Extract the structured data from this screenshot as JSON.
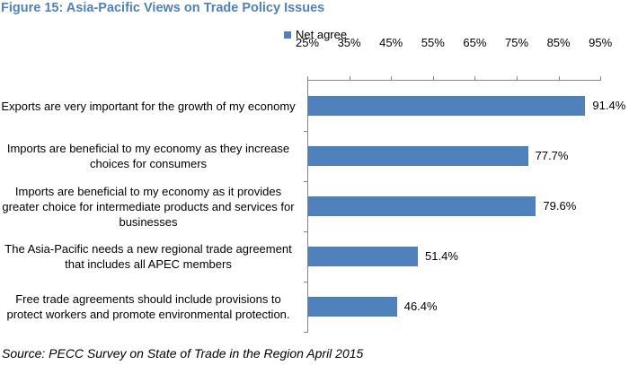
{
  "figure": {
    "title": "Figure 15: Asia-Pacific Views on Trade Policy Issues",
    "source": "Source: PECC Survey on State of Trade in the Region April 2015"
  },
  "legend": {
    "label": "Net agree",
    "color": "#4f81bd"
  },
  "axis": {
    "ticks": [
      "25%",
      "35%",
      "45%",
      "55%",
      "65%",
      "75%",
      "85%",
      "95%"
    ]
  },
  "bars": [
    {
      "category": "Exports are very important for the growth of my economy",
      "value": 91.4,
      "label": "91.4%"
    },
    {
      "category": "Imports are beneficial to my economy  as they increase choices for consumers",
      "value": 77.7,
      "label": "77.7%"
    },
    {
      "category": "Imports are beneficial to my economy as it provides greater choice for intermediate products and services for businesses",
      "value": 79.6,
      "label": "79.6%"
    },
    {
      "category": "The Asia-Pacific needs a new regional trade agreement that includes all APEC members",
      "value": 51.4,
      "label": "51.4%"
    },
    {
      "category": "Free trade agreements should include provisions to protect workers and promote environmental protection.",
      "value": 46.4,
      "label": "46.4%"
    }
  ],
  "chart_data": {
    "type": "bar",
    "orientation": "horizontal",
    "title": "Figure 15: Asia-Pacific Views on Trade Policy Issues",
    "categories": [
      "Exports are very important for the growth of my economy",
      "Imports are beneficial to my economy  as they increase choices for consumers",
      "Imports are beneficial to my economy as it provides greater choice for intermediate products and services for businesses",
      "The Asia-Pacific needs a new regional trade agreement that includes all APEC members",
      "Free trade agreements should include provisions to protect workers and promote environmental protection."
    ],
    "series": [
      {
        "name": "Net agree",
        "values": [
          91.4,
          77.7,
          79.6,
          51.4,
          46.4
        ],
        "color": "#4f81bd"
      }
    ],
    "data_labels": [
      "91.4%",
      "77.7%",
      "79.6%",
      "51.4%",
      "46.4%"
    ],
    "xlabel": "",
    "ylabel": "",
    "xlim": [
      25,
      95
    ],
    "x_ticks": [
      "25%",
      "35%",
      "45%",
      "55%",
      "65%",
      "75%",
      "85%",
      "95%"
    ],
    "x_axis_position": "top",
    "grid": false,
    "legend_position": "top",
    "source": "Source: PECC Survey on State of Trade in the Region April 2015"
  }
}
